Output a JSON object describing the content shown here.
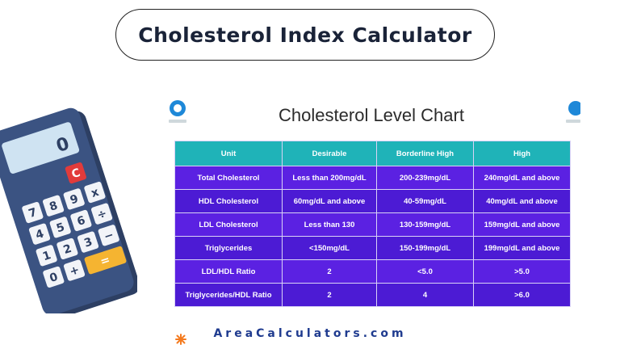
{
  "header": {
    "title": "Cholesterol Index Calculator"
  },
  "calculator": {
    "display": "0",
    "keys": [
      "C",
      "7",
      "8",
      "9",
      "x",
      "4",
      "5",
      "6",
      "÷",
      "1",
      "2",
      "3",
      "−",
      "0",
      "+",
      "="
    ]
  },
  "chart": {
    "title": "Cholesterol Level Chart",
    "logo_left_caption": "",
    "logo_right_caption": "",
    "columns": [
      "Unit",
      "Desirable",
      "Borderline High",
      "High"
    ],
    "rows": [
      [
        "Total Cholesterol",
        "Less than 200mg/dL",
        "200-239mg/dL",
        "240mg/dL and above"
      ],
      [
        "HDL Cholesterol",
        "60mg/dL and above",
        "40-59mg/dL",
        "40mg/dL and above"
      ],
      [
        "LDL Cholesterol",
        "Less than 130",
        "130-159mg/dL",
        "159mg/dL and above"
      ],
      [
        "Triglycerides",
        "<150mg/dL",
        "150-199mg/dL",
        "199mg/dL and above"
      ],
      [
        "LDL/HDL Ratio",
        "2",
        "<5.0",
        ">5.0"
      ],
      [
        "Triglycerides/HDL Ratio",
        "2",
        "4",
        ">6.0"
      ]
    ]
  },
  "footer": {
    "site": "AreaCalculators.com"
  },
  "colors": {
    "header_row": "#1fb3b8",
    "body_row": "#5b21e2",
    "footer_text": "#1f3b8f",
    "accent_orange": "#f47b20"
  }
}
